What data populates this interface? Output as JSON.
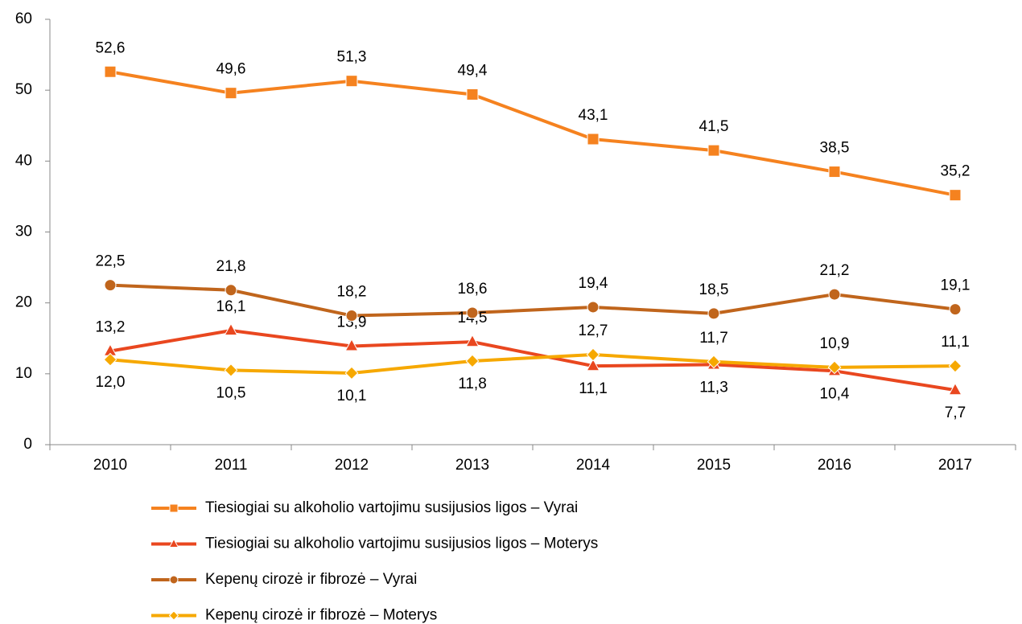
{
  "chart_data": {
    "type": "line",
    "categories": [
      "2010",
      "2011",
      "2012",
      "2013",
      "2014",
      "2015",
      "2016",
      "2017"
    ],
    "ylim": [
      0,
      60
    ],
    "yticks": [
      0,
      10,
      20,
      30,
      40,
      50,
      60
    ],
    "grid": false,
    "legend": "bottom",
    "series": [
      {
        "name": "Tiesiogiai su alkoholio vartojimu susijusios ligos – Vyrai",
        "color": "#f5821f",
        "marker": "square",
        "values": [
          52.6,
          49.6,
          51.3,
          49.4,
          43.1,
          41.5,
          38.5,
          35.2
        ],
        "value_labels": [
          "52,6",
          "49,6",
          "51,3",
          "49,4",
          "43,1",
          "41,5",
          "38,5",
          "35,2"
        ]
      },
      {
        "name": "Tiesiogiai su alkoholio vartojimu susijusios ligos – Moterys",
        "color": "#e9471f",
        "marker": "triangle",
        "values": [
          13.2,
          16.1,
          13.9,
          14.5,
          11.1,
          11.3,
          10.4,
          7.7
        ],
        "value_labels": [
          "13,2",
          "16,1",
          "13,9",
          "14,5",
          "11,1",
          "11,3",
          "10,4",
          "7,7"
        ]
      },
      {
        "name": "Kepenų cirozė ir fibrozė – Vyrai",
        "color": "#c0651c",
        "marker": "circle",
        "values": [
          22.5,
          21.8,
          18.2,
          18.6,
          19.4,
          18.5,
          21.2,
          19.1
        ],
        "value_labels": [
          "22,5",
          "21,8",
          "18,2",
          "18,6",
          "19,4",
          "18,5",
          "21,2",
          "19,1"
        ]
      },
      {
        "name": "Kepenų cirozė ir fibrozė – Moterys",
        "color": "#f6a800",
        "marker": "diamond",
        "values": [
          12.0,
          10.5,
          10.1,
          11.8,
          12.7,
          11.7,
          10.9,
          11.1
        ],
        "value_labels": [
          "12,0",
          "10,5",
          "10,1",
          "11,8",
          "12,7",
          "11,7",
          "10,9",
          "11,1"
        ]
      }
    ]
  }
}
